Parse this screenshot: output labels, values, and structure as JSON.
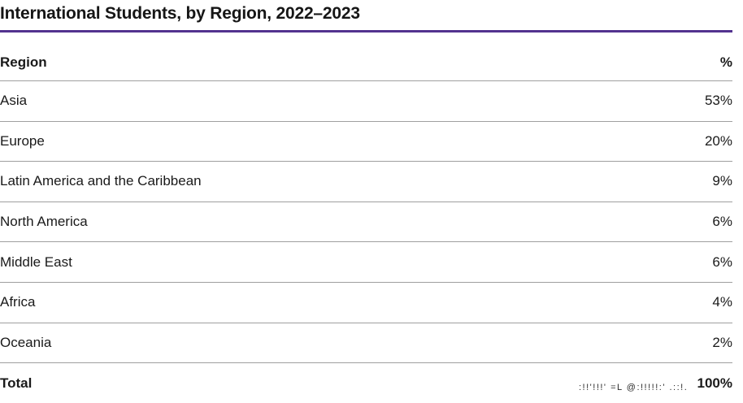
{
  "title": "International Students, by Region, 2022–2023",
  "colors": {
    "accent_rule": "#53338F",
    "divider": "#9F9F9F",
    "text": "#1A1A1A"
  },
  "table": {
    "columns": {
      "region": "Region",
      "percent": "%"
    },
    "rows": [
      {
        "region": "Asia",
        "percent": "53%"
      },
      {
        "region": "Europe",
        "percent": "20%"
      },
      {
        "region": "Latin America and the Caribbean",
        "percent": "9%"
      },
      {
        "region": "North America",
        "percent": "6%"
      },
      {
        "region": "Middle East",
        "percent": "6%"
      },
      {
        "region": "Africa",
        "percent": "4%"
      },
      {
        "region": "Oceania",
        "percent": "2%"
      }
    ],
    "total": {
      "label": "Total",
      "percent": "100%"
    }
  },
  "clipped_text_fragment": ":!!'!!!' =L @:!!!!!:' .::!.",
  "chart_data": {
    "type": "table",
    "title": "International Students, by Region, 2022–2023",
    "columns": [
      "Region",
      "%"
    ],
    "categories": [
      "Asia",
      "Europe",
      "Latin America and the Caribbean",
      "North America",
      "Middle East",
      "Africa",
      "Oceania"
    ],
    "values": [
      53,
      20,
      9,
      6,
      6,
      4,
      2
    ],
    "total": 100,
    "unit": "%"
  }
}
